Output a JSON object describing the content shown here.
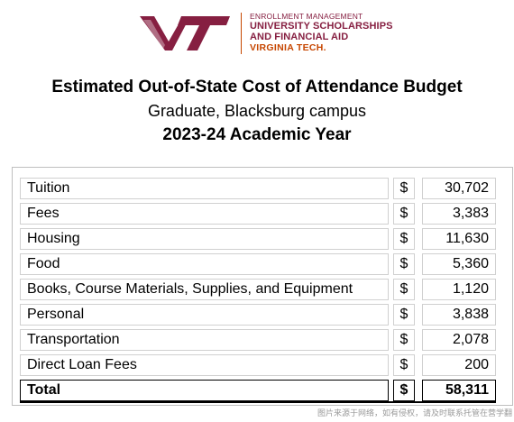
{
  "logo": {
    "line1": "ENROLLMENT MANAGEMENT",
    "line2": "UNIVERSITY SCHOLARSHIPS",
    "line3": "AND FINANCIAL AID",
    "line4": "VIRGINIA TECH.",
    "colors": {
      "maroon": "#861f41",
      "orange": "#c64600"
    }
  },
  "header": {
    "title": "Estimated Out-of-State Cost of Attendance Budget",
    "subtitle": "Graduate, Blacksburg campus",
    "year": "2023-24 Academic Year"
  },
  "budget": {
    "rows": [
      {
        "label": "Tuition",
        "currency": "$",
        "amount": "30,702"
      },
      {
        "label": "Fees",
        "currency": "$",
        "amount": "3,383"
      },
      {
        "label": "Housing",
        "currency": "$",
        "amount": "11,630"
      },
      {
        "label": "Food",
        "currency": "$",
        "amount": "5,360"
      },
      {
        "label": "Books, Course Materials, Supplies, and Equipment",
        "currency": "$",
        "amount": "1,120"
      },
      {
        "label": "Personal",
        "currency": "$",
        "amount": "3,838"
      },
      {
        "label": "Transportation",
        "currency": "$",
        "amount": "2,078"
      },
      {
        "label": "Direct Loan Fees",
        "currency": "$",
        "amount": "200"
      }
    ],
    "total": {
      "label": "Total",
      "currency": "$",
      "amount": "58,311"
    }
  },
  "watermark": "图片来源于网络，如有侵权，请及时联系托管在营学翻"
}
